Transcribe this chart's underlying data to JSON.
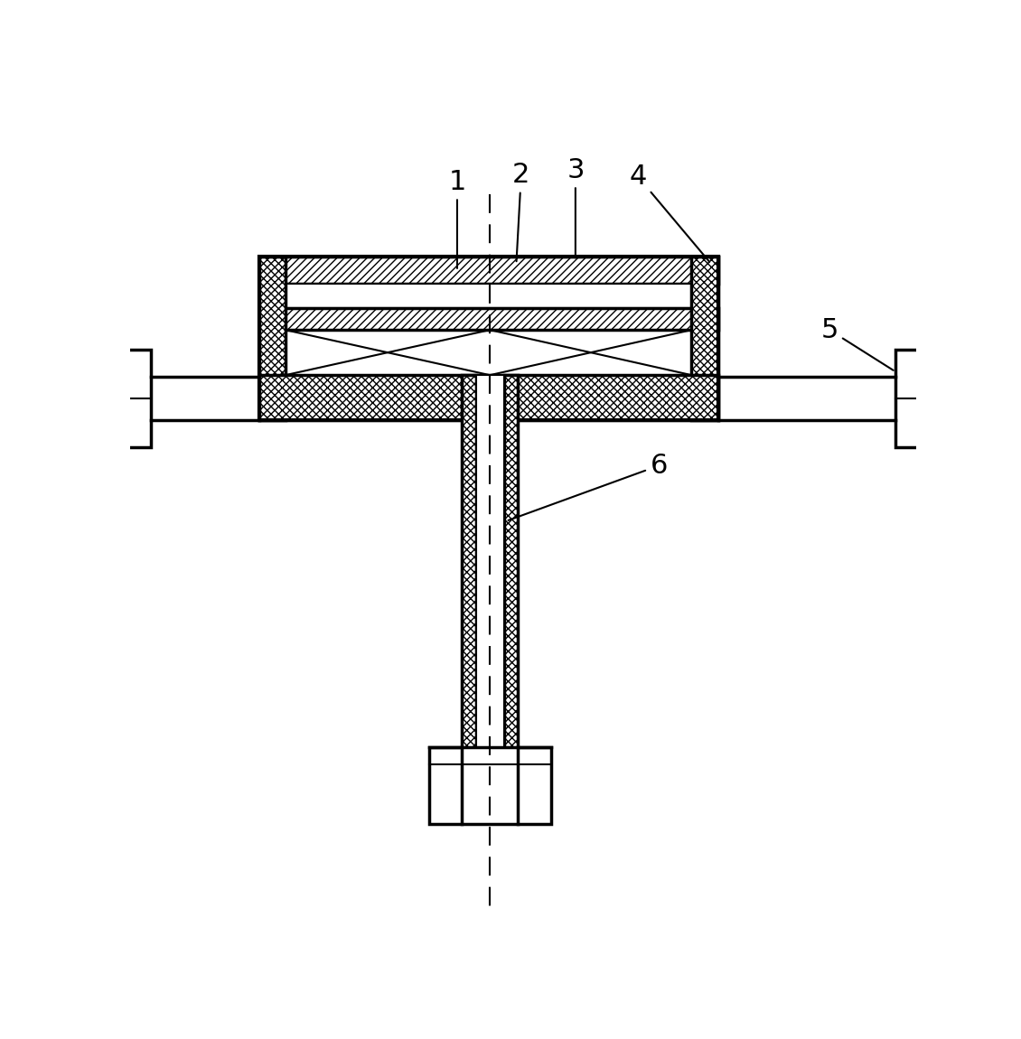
{
  "bg_color": "#ffffff",
  "line_color": "#000000",
  "fig_width": 11.3,
  "fig_height": 11.5
}
